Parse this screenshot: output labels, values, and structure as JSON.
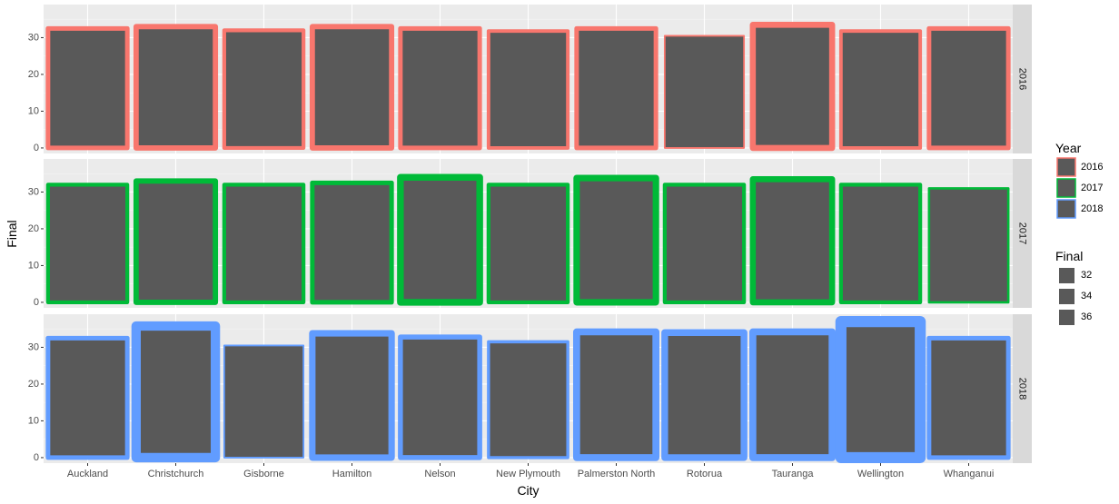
{
  "chart_data": {
    "type": "bar",
    "xlabel": "City",
    "ylabel": "Final",
    "categories": [
      "Auckland",
      "Christchurch",
      "Gisborne",
      "Hamilton",
      "Nelson",
      "New Plymouth",
      "Palmerston North",
      "Rotorua",
      "Tauranga",
      "Wellington",
      "Whanganui"
    ],
    "facets": [
      {
        "label": "2016",
        "color": "#F8766D",
        "values": [
          32.5,
          33.0,
          32.0,
          33.0,
          32.5,
          31.8,
          32.5,
          30.5,
          33.5,
          31.8,
          32.5
        ],
        "size_values": [
          32.5,
          33.0,
          32.0,
          33.0,
          32.5,
          31.8,
          32.5,
          30.5,
          33.5,
          31.8,
          32.5
        ]
      },
      {
        "label": "2017",
        "color": "#00BA38",
        "values": [
          32.0,
          33.0,
          32.0,
          32.5,
          34.0,
          32.0,
          33.8,
          32.0,
          33.5,
          32.0,
          31.0
        ],
        "size_values": [
          32.0,
          33.0,
          32.0,
          32.5,
          34.0,
          32.0,
          33.8,
          32.0,
          33.5,
          32.0,
          31.0
        ]
      },
      {
        "label": "2018",
        "color": "#619CFF",
        "values": [
          32.5,
          35.8,
          30.5,
          33.8,
          32.8,
          31.5,
          34.2,
          34.0,
          34.2,
          37.0,
          32.5
        ],
        "size_values": [
          32.5,
          35.8,
          30.5,
          33.8,
          32.8,
          31.5,
          34.2,
          34.0,
          34.2,
          37.0,
          32.5
        ]
      }
    ],
    "y_ticks": [
      0,
      10,
      20,
      30
    ],
    "ylim": [
      -1.5,
      39
    ],
    "bar_fill": "#595959",
    "panel_background": "#EBEBEB",
    "strip_background": "#D9D9D9",
    "grid": true,
    "legend_position": "right",
    "legends": [
      {
        "title": "Year",
        "entries": [
          {
            "label": "2016",
            "color": "#F8766D"
          },
          {
            "label": "2017",
            "color": "#00BA38"
          },
          {
            "label": "2018",
            "color": "#619CFF"
          }
        ]
      },
      {
        "title": "Final",
        "entries": [
          {
            "label": "32"
          },
          {
            "label": "34"
          },
          {
            "label": "36"
          }
        ]
      }
    ]
  }
}
